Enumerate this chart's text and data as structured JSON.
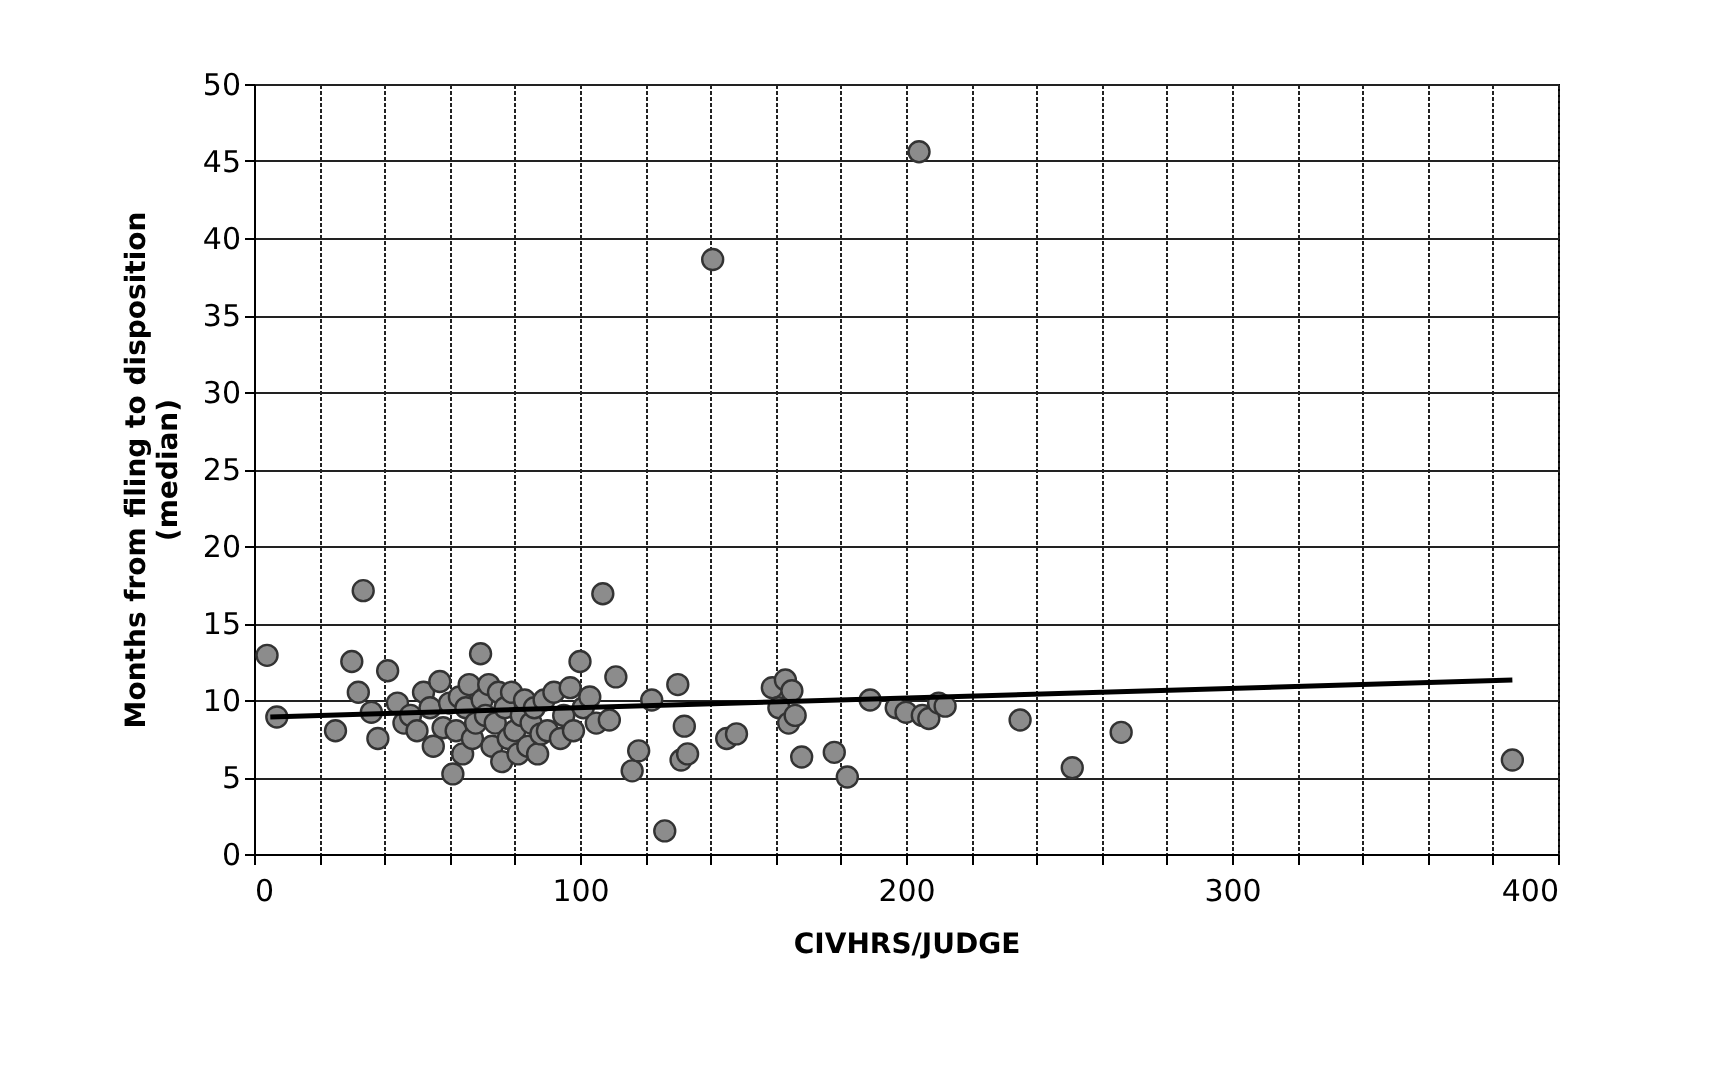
{
  "chart_data": {
    "type": "scatter",
    "xlabel": "CIVHRS/JUDGE",
    "ylabel": "Months from filing to disposition\n(median)",
    "xlim": [
      0,
      400
    ],
    "ylim": [
      0,
      50
    ],
    "xticks": [
      0,
      {
        "value": 20,
        "label": null
      },
      {
        "value": 40,
        "label": null
      },
      {
        "value": 60,
        "label": null
      },
      {
        "value": 80,
        "label": null
      },
      100,
      {
        "value": 120,
        "label": null
      },
      {
        "value": 140,
        "label": null
      },
      {
        "value": 160,
        "label": null
      },
      {
        "value": 180,
        "label": null
      },
      200,
      {
        "value": 220,
        "label": null
      },
      {
        "value": 240,
        "label": null
      },
      {
        "value": 260,
        "label": null
      },
      {
        "value": 280,
        "label": null
      },
      300,
      {
        "value": 320,
        "label": null
      },
      {
        "value": 340,
        "label": null
      },
      {
        "value": 360,
        "label": null
      },
      {
        "value": 380,
        "label": null
      },
      400
    ],
    "yticks": [
      0,
      5,
      10,
      15,
      20,
      25,
      30,
      35,
      40,
      45,
      50
    ],
    "grid": true,
    "series": [
      {
        "color": "#8c8c8c",
        "marker": "circle",
        "x": [
          4,
          7,
          25,
          30,
          32,
          33.5,
          36,
          38,
          41,
          44,
          46,
          48,
          50,
          52,
          54,
          55,
          57,
          58,
          60,
          61,
          62,
          63,
          64,
          65,
          66,
          67,
          68,
          69.5,
          70,
          71,
          72,
          73,
          74,
          75,
          76,
          77,
          78,
          79,
          80,
          81,
          82,
          83,
          84,
          85,
          86,
          87,
          88,
          89,
          90,
          92,
          94,
          95,
          97,
          98,
          100,
          101,
          103,
          105,
          107,
          109,
          111,
          116,
          118,
          122,
          126,
          130,
          131,
          132,
          133,
          140.7,
          145,
          148,
          159,
          161,
          163,
          164,
          165,
          166,
          168,
          178,
          182,
          189,
          197,
          200,
          204,
          205,
          207,
          210,
          212,
          235,
          251,
          266,
          386
        ],
        "values": [
          12.9,
          8.9,
          8.0,
          12.5,
          10.5,
          17.1,
          9.2,
          7.5,
          11.9,
          9.8,
          8.5,
          9.0,
          8.0,
          10.5,
          9.5,
          7.0,
          11.2,
          8.2,
          9.8,
          5.2,
          8.0,
          10.2,
          6.5,
          9.5,
          11.0,
          7.5,
          8.5,
          13.0,
          10.0,
          9.0,
          11.0,
          7.0,
          8.5,
          10.5,
          6.0,
          9.5,
          7.5,
          10.5,
          8.0,
          6.5,
          9.0,
          10.0,
          7.0,
          8.5,
          9.5,
          6.5,
          7.8,
          10.0,
          8.0,
          10.5,
          7.5,
          9.0,
          10.8,
          8.0,
          12.5,
          9.5,
          10.2,
          8.5,
          16.9,
          8.7,
          11.5,
          5.4,
          6.7,
          10.0,
          1.5,
          11.0,
          6.1,
          8.3,
          6.5,
          38.6,
          7.5,
          7.8,
          10.8,
          9.5,
          11.3,
          8.5,
          10.6,
          9.0,
          6.3,
          6.6,
          5.0,
          10.0,
          9.5,
          9.2,
          45.6,
          9.0,
          8.8,
          9.8,
          9.6,
          8.7,
          5.6,
          7.9,
          6.1
        ]
      },
      {
        "type": "line",
        "color": "#000000",
        "marker": "none",
        "x": [
          5,
          386
        ],
        "values": [
          8.9,
          11.3
        ]
      }
    ]
  }
}
